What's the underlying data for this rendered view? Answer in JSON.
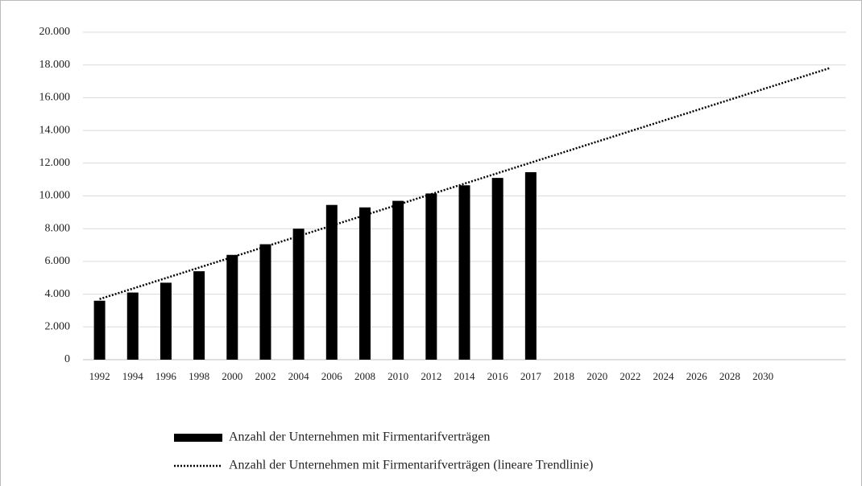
{
  "chart_data": {
    "type": "bar",
    "categories": [
      "1992",
      "1994",
      "1996",
      "1998",
      "2000",
      "2002",
      "2004",
      "2006",
      "2008",
      "2010",
      "2012",
      "2014",
      "2016",
      "2017",
      "2018",
      "2020",
      "2022",
      "2024",
      "2026",
      "2028",
      "2030",
      null,
      null
    ],
    "series": [
      {
        "name": "Anzahl der Unternehmen mit Firmentarifverträgen",
        "type": "bar",
        "color": "#000000",
        "values": [
          3600,
          4100,
          4700,
          5400,
          6400,
          7050,
          8000,
          9450,
          9300,
          9700,
          10150,
          10650,
          11100,
          11450,
          null,
          null,
          null,
          null,
          null,
          null,
          null,
          null,
          null
        ]
      },
      {
        "name": "Anzahl der Unternehmen mit Firmentarifverträgen (lineare Trendlinie)",
        "type": "line",
        "color": "#000000",
        "dotted": true,
        "values": [
          3700,
          4341,
          4982,
          5623,
          6264,
          6905,
          7545,
          8186,
          8827,
          9468,
          10109,
          10750,
          11391,
          12032,
          12673,
          13314,
          13955,
          14595,
          15236,
          15877,
          16518,
          17159,
          17800
        ]
      }
    ],
    "ylim": [
      0,
      20000
    ],
    "yticks": [
      0,
      {
        "value": 2000,
        "label": "2.000"
      },
      {
        "value": 4000,
        "label": "4.000"
      },
      {
        "value": 6000,
        "label": "6.000"
      },
      {
        "value": 8000,
        "label": "8.000"
      },
      {
        "value": 10000,
        "label": "10.000"
      },
      {
        "value": 12000,
        "label": "12.000"
      },
      {
        "value": 14000,
        "label": "14.000"
      },
      {
        "value": 16000,
        "label": "16.000"
      },
      {
        "value": 18000,
        "label": "18.000"
      },
      {
        "value": 20000,
        "label": "20.000"
      }
    ],
    "grid": true,
    "legend": "bottom"
  }
}
